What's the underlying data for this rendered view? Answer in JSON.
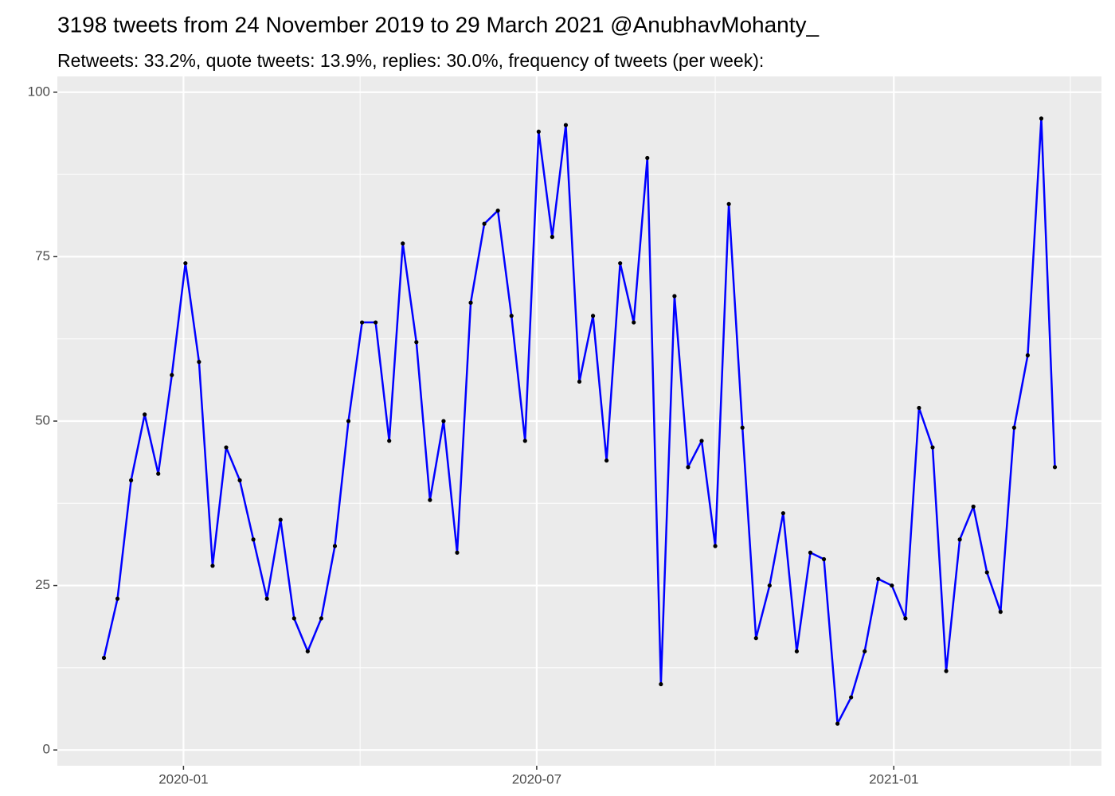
{
  "chart_data": {
    "type": "line",
    "title": "3198 tweets from 24 November 2019 to 29 March 2021 @AnubhavMohanty_",
    "subtitle": "Retweets: 33.2%, quote tweets: 13.9%, replies: 30.0%, frequency of tweets (per week):",
    "x": [
      "2019-11-21",
      "2019-11-28",
      "2019-12-05",
      "2019-12-12",
      "2019-12-19",
      "2019-12-26",
      "2020-01-02",
      "2020-01-09",
      "2020-01-16",
      "2020-01-23",
      "2020-01-30",
      "2020-02-06",
      "2020-02-13",
      "2020-02-20",
      "2020-02-27",
      "2020-03-05",
      "2020-03-12",
      "2020-03-19",
      "2020-03-26",
      "2020-04-02",
      "2020-04-09",
      "2020-04-16",
      "2020-04-23",
      "2020-04-30",
      "2020-05-07",
      "2020-05-14",
      "2020-05-21",
      "2020-05-28",
      "2020-06-04",
      "2020-06-11",
      "2020-06-18",
      "2020-06-25",
      "2020-07-02",
      "2020-07-09",
      "2020-07-16",
      "2020-07-23",
      "2020-07-30",
      "2020-08-06",
      "2020-08-13",
      "2020-08-20",
      "2020-08-27",
      "2020-09-03",
      "2020-09-10",
      "2020-09-17",
      "2020-09-24",
      "2020-10-01",
      "2020-10-08",
      "2020-10-15",
      "2020-10-22",
      "2020-10-29",
      "2020-11-05",
      "2020-11-12",
      "2020-11-19",
      "2020-11-26",
      "2020-12-03",
      "2020-12-10",
      "2020-12-17",
      "2020-12-24",
      "2020-12-31",
      "2021-01-07",
      "2021-01-14",
      "2021-01-21",
      "2021-01-28",
      "2021-02-04",
      "2021-02-11",
      "2021-02-18",
      "2021-02-25",
      "2021-03-04",
      "2021-03-11",
      "2021-03-18",
      "2021-03-25"
    ],
    "values": [
      14,
      23,
      41,
      51,
      42,
      57,
      74,
      59,
      28,
      46,
      41,
      32,
      23,
      35,
      20,
      15,
      20,
      31,
      50,
      65,
      65,
      47,
      77,
      62,
      38,
      50,
      30,
      68,
      80,
      82,
      66,
      47,
      94,
      78,
      95,
      56,
      66,
      44,
      74,
      65,
      90,
      10,
      69,
      43,
      47,
      31,
      83,
      49,
      17,
      25,
      36,
      15,
      30,
      29,
      4,
      8,
      15,
      26,
      25,
      20,
      52,
      46,
      12,
      32,
      37,
      27,
      21,
      49,
      60,
      96,
      43
    ],
    "color": "#0000ff",
    "point_color": "#000000",
    "xlim": [
      "2019-10-28",
      "2021-04-18"
    ],
    "xticks": [
      "2020-01",
      "2020-07",
      "2021-01"
    ],
    "ylim": [
      -2.4,
      102.4
    ],
    "yticks": [
      0,
      25,
      50,
      75,
      100
    ],
    "grid": true
  }
}
